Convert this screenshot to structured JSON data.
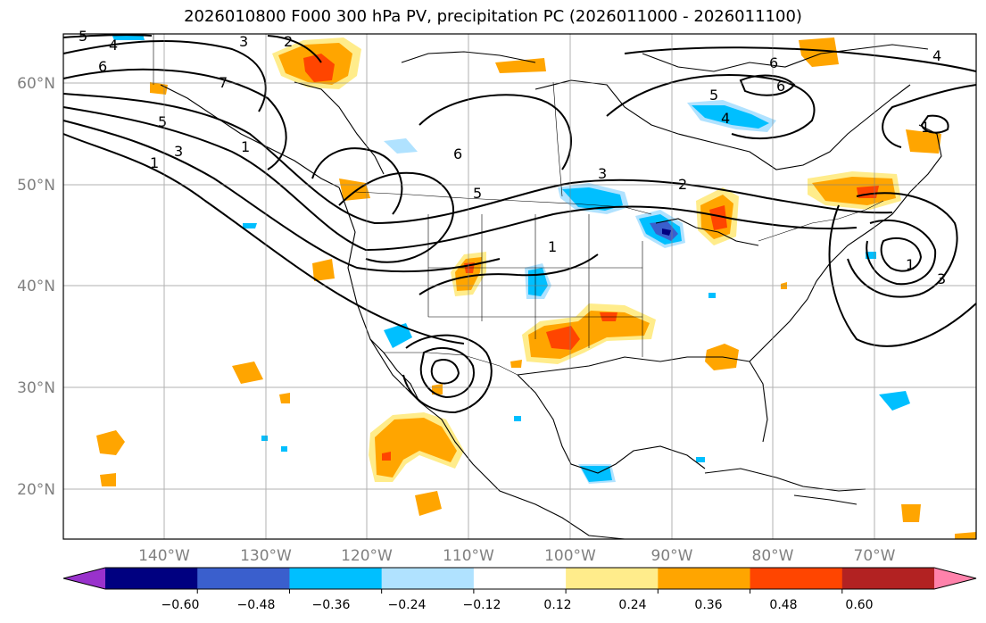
{
  "title": "2026010800 F000 300 hPa PV, precipitation PC (2026011000 - 2026011100)",
  "lat_labels": [
    "60°N",
    "50°N",
    "40°N",
    "30°N",
    "20°N"
  ],
  "lon_labels": [
    "140°W",
    "130°W",
    "120°W",
    "110°W",
    "100°W",
    "90°W",
    "80°W",
    "70°W"
  ],
  "colorbar": {
    "colors": [
      "#9932cc",
      "#000080",
      "#3a5fcd",
      "#00bfff",
      "#b0e2ff",
      "#ffffff",
      "#ffec8b",
      "#ffa500",
      "#ff4500",
      "#b22222",
      "#ff82ab"
    ],
    "tick_labels": [
      "−0.60",
      "−0.48",
      "−0.36",
      "−0.24",
      "−0.12",
      "0.12",
      "0.24",
      "0.36",
      "0.48",
      "0.60"
    ]
  },
  "pv_contour_labels": [
    "1",
    "3",
    "5",
    "6",
    "7",
    "4",
    "5",
    "1",
    "2",
    "3",
    "6",
    "5",
    "4",
    "6",
    "1",
    "5",
    "6",
    "3",
    "1",
    "4",
    "3",
    "2",
    "1"
  ],
  "colors": {
    "positive_light": "#ffec8b",
    "positive_mid": "#ffa500",
    "positive_strong": "#ff4500",
    "negative_light": "#b0e2ff",
    "negative_mid": "#00bfff",
    "negative_strong": "#3a5fcd",
    "negative_max": "#000080"
  }
}
